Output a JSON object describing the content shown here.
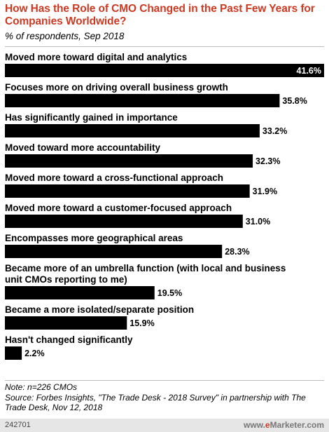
{
  "header": {
    "title": "How Has the Role of CMO Changed in the Past Few Years for Companies Worldwide?",
    "subtitle": "% of respondents, Sep 2018"
  },
  "chart_data": {
    "type": "bar",
    "orientation": "horizontal",
    "categories": [
      "Moved more toward digital and analytics",
      "Focuses more on driving overall business growth",
      "Has significantly gained in importance",
      "Moved toward more accountability",
      "Moved more toward a cross-functional approach",
      "Moved more toward a customer-focused approach",
      "Encompasses more geographical areas",
      "Became more of an umbrella function (with local and business unit CMOs reporting to me)",
      "Became a more isolated/separate position",
      "Hasn't changed significantly"
    ],
    "label_lines": [
      [
        "Moved more toward digital and analytics"
      ],
      [
        "Focuses more on driving overall business growth"
      ],
      [
        "Has significantly gained in importance"
      ],
      [
        "Moved toward more accountability"
      ],
      [
        "Moved more toward a cross-functional approach"
      ],
      [
        "Moved more toward a customer-focused approach"
      ],
      [
        "Encompasses more geographical areas"
      ],
      [
        "Became more of an umbrella function (with local and business",
        "unit CMOs reporting to me)"
      ],
      [
        "Became a more isolated/separate position"
      ],
      [
        "Hasn't changed significantly"
      ]
    ],
    "values": [
      41.6,
      35.8,
      33.2,
      32.3,
      31.9,
      31.0,
      28.3,
      19.5,
      15.9,
      2.2
    ],
    "value_labels": [
      "41.6%",
      "35.8%",
      "33.2%",
      "32.3%",
      "31.9%",
      "31.0%",
      "28.3%",
      "19.5%",
      "15.9%",
      "2.2%"
    ],
    "xlim": [
      0,
      41.6
    ],
    "bar_color": "#000000",
    "value_label_inside_color": "#ffffff",
    "value_label_outside_color": "#000000",
    "grid": false,
    "legend": "none"
  },
  "footer": {
    "note": "Note: n=226 CMOs",
    "source": "Source: Forbes Insights, \"The Trade Desk - 2018 Survey\" in partnership with The Trade Desk, Nov 12, 2018",
    "chart_id": "242701",
    "brand_e": "e",
    "brand_rest": "Marketer",
    "brand_suffix": ".com",
    "brand_prefix": "www."
  }
}
